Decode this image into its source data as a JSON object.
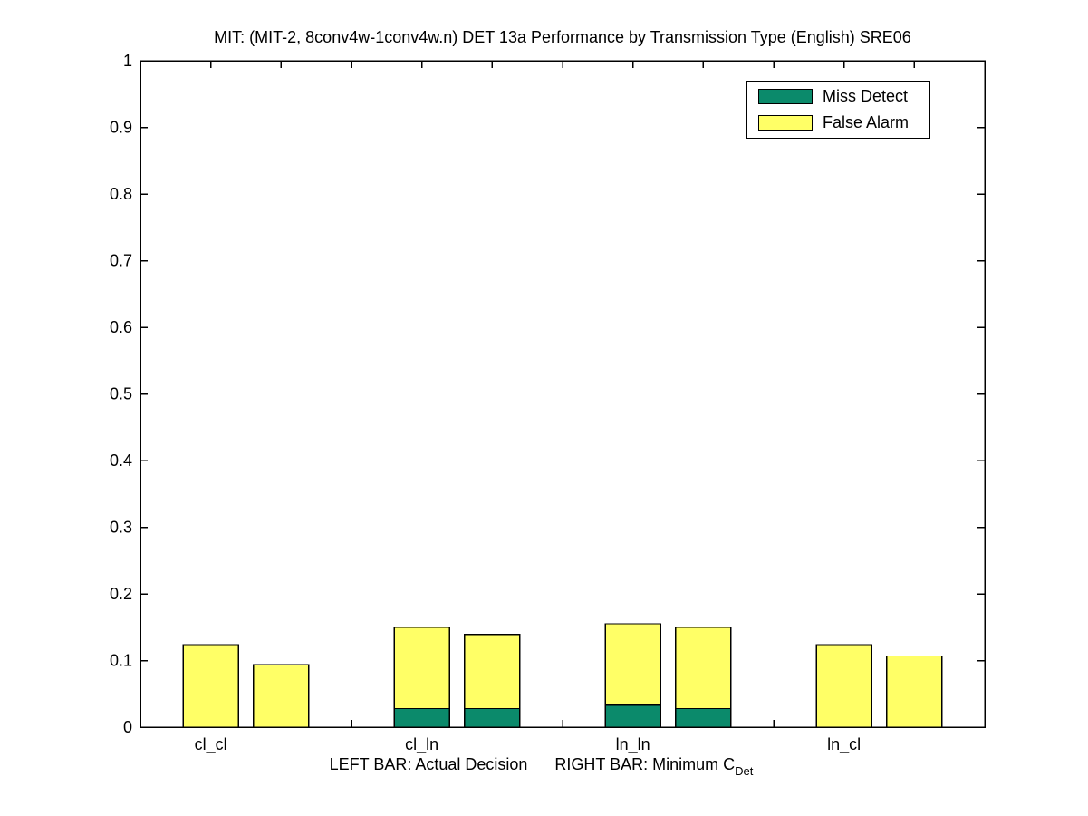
{
  "title": "MIT: (MIT-2, 8conv4w-1conv4w.n) DET 13a Performance by Transmission Type (English) SRE06",
  "xlabel": {
    "left": "LEFT BAR: Actual Decision",
    "right": "RIGHT BAR: Minimum C",
    "subscript": "Det"
  },
  "chart_data": {
    "type": "bar",
    "variant": "stacked-segments-paired-bars",
    "title": "MIT: (MIT-2, 8conv4w-1conv4w.n) DET 13a Performance by Transmission Type (English) SRE06",
    "categories": [
      "cl_cl",
      "cl_ln",
      "ln_ln",
      "ln_cl"
    ],
    "bar_pair_meaning": [
      "LEFT BAR: Actual Decision",
      "RIGHT BAR: Minimum C_Det"
    ],
    "legend_items": [
      {
        "label": "Miss Detect",
        "series": "miss_detect",
        "color": "#0b8a6b"
      },
      {
        "label": "False Alarm",
        "series": "false_alarm",
        "color": "#ffff66"
      }
    ],
    "legend_position": "upper right",
    "grid": false,
    "ylim": [
      0,
      1
    ],
    "ytick_step": 0.1,
    "ytick_labels": [
      "0",
      "0.1",
      "0.2",
      "0.3",
      "0.4",
      "0.5",
      "0.6",
      "0.7",
      "0.8",
      "0.9",
      "1"
    ],
    "groups": [
      {
        "category": "cl_cl",
        "actual": {
          "miss_detect": 0.0,
          "false_alarm": 0.124,
          "total": 0.124
        },
        "minimum": {
          "miss_detect": 0.0,
          "false_alarm": 0.094,
          "total": 0.094
        }
      },
      {
        "category": "cl_ln",
        "actual": {
          "miss_detect": 0.028,
          "false_alarm": 0.122,
          "total": 0.15
        },
        "minimum": {
          "miss_detect": 0.028,
          "false_alarm": 0.111,
          "total": 0.139
        }
      },
      {
        "category": "ln_ln",
        "actual": {
          "miss_detect": 0.033,
          "false_alarm": 0.122,
          "total": 0.155
        },
        "minimum": {
          "miss_detect": 0.028,
          "false_alarm": 0.122,
          "total": 0.15
        }
      },
      {
        "category": "ln_cl",
        "actual": {
          "miss_detect": 0.0,
          "false_alarm": 0.124,
          "total": 0.124
        },
        "minimum": {
          "miss_detect": 0.0,
          "false_alarm": 0.107,
          "total": 0.107
        }
      }
    ]
  }
}
